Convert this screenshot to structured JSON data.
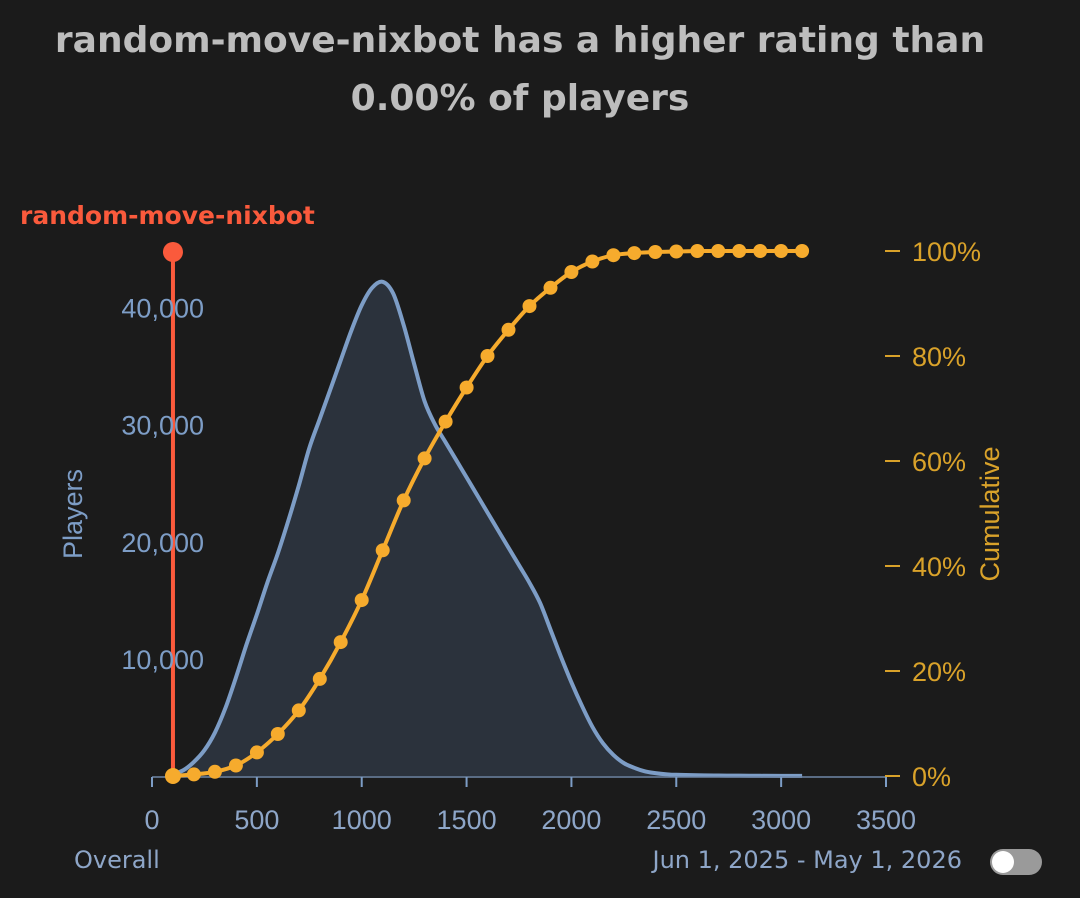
{
  "title": {
    "line1": "random-move-nixbot has a higher rating than",
    "line2": "0.00% of players"
  },
  "colors": {
    "background": "#1b1b1b",
    "players": "#7d9dc6",
    "playersFill": "#2b323c",
    "cumulative": "#f6ab2d",
    "marker": "#fa5a3c",
    "title": "#bdbdbd"
  },
  "chart_data": {
    "type": "area",
    "title": "random-move-nixbot has a higher rating than 0.00% of players",
    "xlabel": "",
    "ylabel": "Players",
    "y2label": "Cumulative",
    "xlim": [
      0,
      3500
    ],
    "ylim": [
      0,
      45000
    ],
    "y2lim": [
      0,
      100
    ],
    "x_ticks": [
      "0",
      "500",
      "1000",
      "1500",
      "2000",
      "2500",
      "3000",
      "3500"
    ],
    "y_ticks": [
      "10,000",
      "20,000",
      "30,000",
      "40,000"
    ],
    "y2_ticks": [
      "0%",
      "20%",
      "40%",
      "60%",
      "80%",
      "100%"
    ],
    "marker": {
      "label": "random-move-nixbot",
      "rating": 100
    },
    "series": [
      {
        "name": "Players",
        "type": "area",
        "x": [
          100,
          150,
          200,
          250,
          300,
          350,
          400,
          450,
          500,
          550,
          600,
          650,
          700,
          750,
          800,
          850,
          900,
          950,
          1000,
          1050,
          1100,
          1150,
          1200,
          1250,
          1300,
          1350,
          1400,
          1450,
          1500,
          1550,
          1600,
          1650,
          1700,
          1750,
          1800,
          1850,
          1900,
          1950,
          2000,
          2050,
          2100,
          2150,
          2200,
          2250,
          2300,
          2350,
          2400,
          2450,
          2500,
          2600,
          2700,
          2800,
          2900,
          3000,
          3100
        ],
        "values": [
          150,
          500,
          1200,
          2200,
          3700,
          5800,
          8400,
          11200,
          13800,
          16500,
          19000,
          21800,
          24800,
          28000,
          30500,
          33000,
          35500,
          38000,
          40200,
          41700,
          42200,
          41200,
          38500,
          35200,
          32000,
          30000,
          28500,
          27000,
          25500,
          24000,
          22500,
          21000,
          19500,
          18000,
          16500,
          14800,
          12500,
          10200,
          8000,
          6000,
          4200,
          2800,
          1800,
          1100,
          700,
          400,
          250,
          150,
          100,
          60,
          40,
          30,
          20,
          10,
          5
        ]
      },
      {
        "name": "Cumulative",
        "type": "line",
        "x": [
          100,
          200,
          300,
          400,
          500,
          600,
          700,
          800,
          900,
          1000,
          1100,
          1200,
          1300,
          1400,
          1500,
          1600,
          1700,
          1800,
          1900,
          2000,
          2100,
          2200,
          2300,
          2400,
          2500,
          2600,
          2700,
          2800,
          2900,
          3000,
          3100
        ],
        "values": [
          0,
          0.3,
          0.8,
          2,
          4.5,
          8,
          12.5,
          18.5,
          25.5,
          33.5,
          43,
          52.5,
          60.5,
          67.5,
          74,
          80,
          85,
          89.5,
          93,
          96,
          98,
          99.2,
          99.6,
          99.8,
          99.9,
          100,
          100,
          100,
          100,
          100,
          100
        ]
      }
    ]
  },
  "footer": {
    "left": "Overall",
    "right": "Jun 1, 2025 - May 1, 2026"
  },
  "toggle": {
    "on": false
  }
}
